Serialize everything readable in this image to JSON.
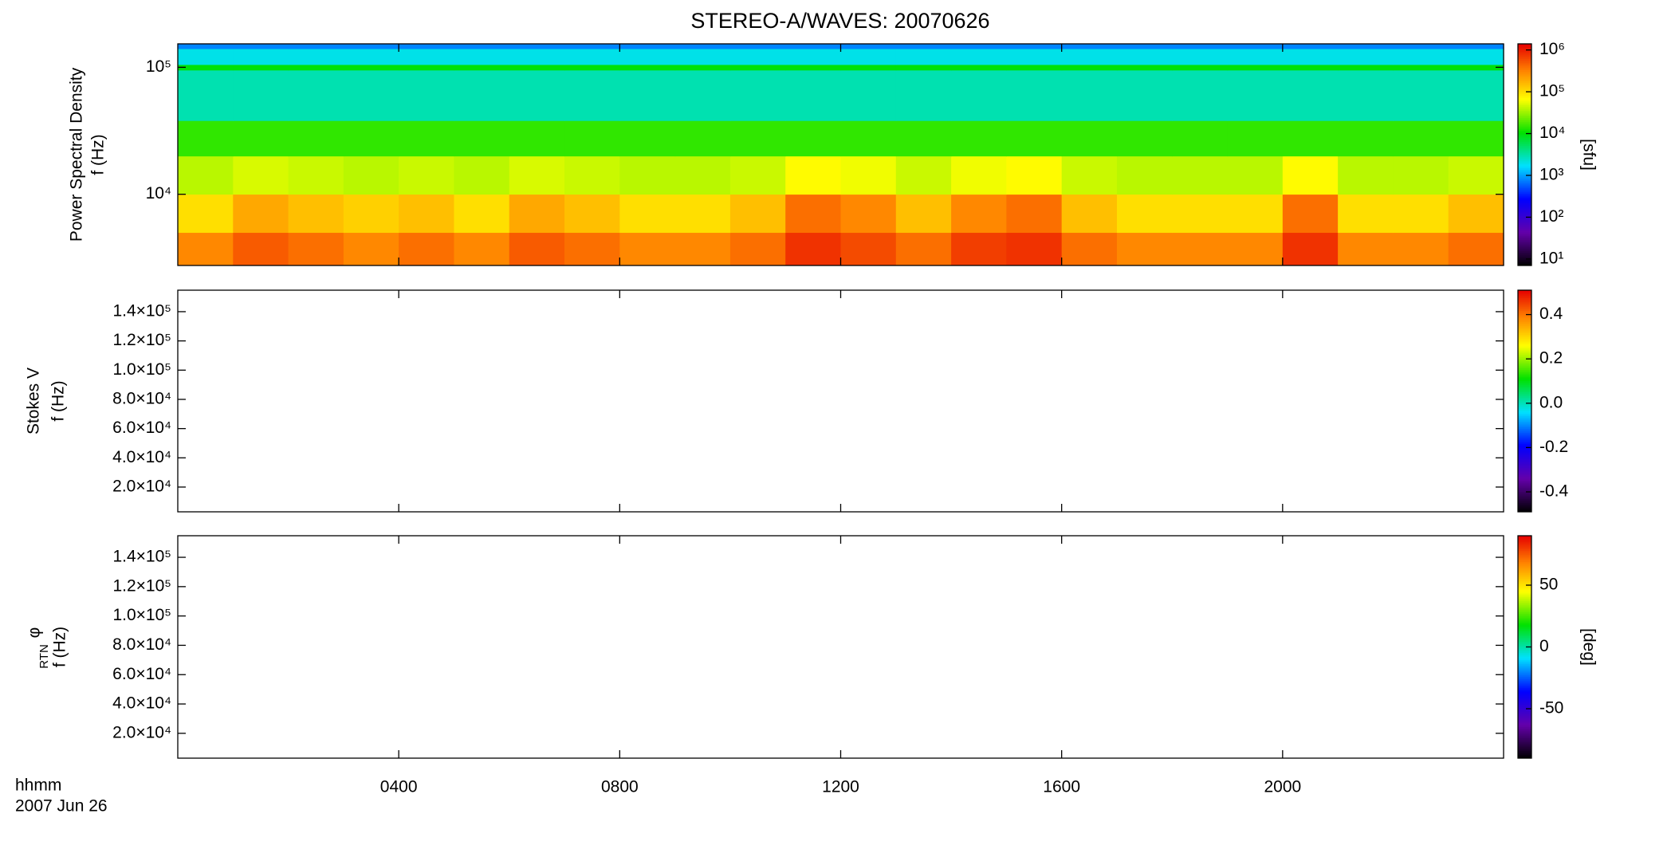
{
  "title": "STEREO-A/WAVES: 20070626",
  "x_label": [
    "hhmm",
    "2007 Jun 26"
  ],
  "chart_data": [
    {
      "type": "heatmap",
      "y_label": [
        "Power Spectral Density",
        "f (Hz)"
      ],
      "ylog": true,
      "ylim": [
        2750,
        153000
      ],
      "yticks": [
        {
          "value": 10000,
          "label": "10⁴"
        },
        {
          "value": 100000,
          "label": "10⁵"
        }
      ],
      "x_edges": [
        0,
        1,
        2,
        3,
        4,
        5,
        6,
        7,
        8,
        9,
        10,
        11,
        12,
        13,
        14,
        15,
        16,
        17,
        18,
        19,
        20,
        21,
        22,
        23,
        24
      ],
      "y_edges": [
        2750,
        5000,
        10000,
        20000,
        38000,
        95000,
        105000,
        140000,
        153000
      ],
      "z": [
        [
          300000,
          500000,
          400000,
          300000,
          400000,
          300000,
          500000,
          400000,
          300000,
          300000,
          400000,
          800000,
          600000,
          400000,
          700000,
          800000,
          400000,
          300000,
          300000,
          300000,
          800000,
          300000,
          300000,
          400000
        ],
        [
          100000,
          200000,
          150000,
          120000,
          150000,
          100000,
          200000,
          150000,
          100000,
          100000,
          150000,
          400000,
          300000,
          150000,
          300000,
          400000,
          150000,
          100000,
          100000,
          100000,
          400000,
          100000,
          100000,
          150000
        ],
        [
          40000,
          50000,
          45000,
          40000,
          45000,
          40000,
          50000,
          45000,
          40000,
          40000,
          45000,
          70000,
          60000,
          45000,
          60000,
          70000,
          45000,
          40000,
          40000,
          40000,
          70000,
          40000,
          40000,
          45000
        ],
        [
          15000,
          15000,
          15000,
          15000,
          15000,
          15000,
          15000,
          15000,
          15000,
          15000,
          15000,
          15000,
          15000,
          15000,
          15000,
          15000,
          15000,
          15000,
          15000,
          15000,
          15000,
          15000,
          15000,
          15000
        ],
        [
          3000,
          3000,
          3000,
          3000,
          3000,
          3000,
          3000,
          3000,
          3000,
          3000,
          3000,
          3000,
          3000,
          3000,
          3000,
          3000,
          3000,
          3000,
          3000,
          3000,
          3000,
          3000,
          3000,
          3000
        ],
        [
          10000,
          10000,
          10000,
          10000,
          10000,
          10000,
          10000,
          10000,
          10000,
          10000,
          10000,
          10000,
          10000,
          10000,
          10000,
          10000,
          10000,
          10000,
          10000,
          10000,
          10000,
          10000,
          10000,
          10000
        ],
        [
          2000,
          2000,
          2000,
          2000,
          2000,
          2000,
          2000,
          2000,
          2000,
          2000,
          2000,
          2000,
          2000,
          2000,
          2000,
          2000,
          2000,
          2000,
          2000,
          2000,
          2000,
          2000,
          2000,
          2000
        ],
        [
          800,
          800,
          800,
          800,
          800,
          800,
          800,
          800,
          800,
          800,
          800,
          800,
          800,
          800,
          800,
          800,
          800,
          800,
          800,
          800,
          800,
          800,
          800,
          800
        ]
      ],
      "colorbar": {
        "zlog": true,
        "zlim": [
          7,
          1400000
        ],
        "label": "[sfu]",
        "zticks": [
          {
            "value": 10,
            "label": "10¹"
          },
          {
            "value": 100,
            "label": "10²"
          },
          {
            "value": 1000,
            "label": "10³"
          },
          {
            "value": 10000,
            "label": "10⁴"
          },
          {
            "value": 100000,
            "label": "10⁵"
          },
          {
            "value": 1000000,
            "label": "10⁶"
          }
        ]
      }
    },
    {
      "type": "heatmap",
      "y_label": [
        "Stokes V",
        "f (Hz)"
      ],
      "ylog": false,
      "ylim": [
        3060,
        154700
      ],
      "yticks": [
        {
          "value": 20000,
          "label": "2.0×10⁴"
        },
        {
          "value": 40000,
          "label": "4.0×10⁴"
        },
        {
          "value": 60000,
          "label": "6.0×10⁴"
        },
        {
          "value": 80000,
          "label": "8.0×10⁴"
        },
        {
          "value": 100000,
          "label": "1.0×10⁵"
        },
        {
          "value": 120000,
          "label": "1.2×10⁵"
        },
        {
          "value": 140000,
          "label": "1.4×10⁵"
        }
      ],
      "colorbar": {
        "zlog": false,
        "zlim": [
          -0.49,
          0.51
        ],
        "zticks": [
          -0.4,
          -0.2,
          {
            "value": 0,
            "label": "0.0"
          },
          0.2,
          0.4
        ]
      }
    },
    {
      "type": "heatmap",
      "y_label_symbol": "φ",
      "y_label_subscript": "RTN",
      "y_label": [
        "f (Hz)"
      ],
      "ylog": false,
      "ylim": [
        3060,
        154700
      ],
      "yticks": [
        {
          "value": 20000,
          "label": "2.0×10⁴"
        },
        {
          "value": 40000,
          "label": "4.0×10⁴"
        },
        {
          "value": 60000,
          "label": "6.0×10⁴"
        },
        {
          "value": 80000,
          "label": "8.0×10⁴"
        },
        {
          "value": 100000,
          "label": "1.0×10⁵"
        },
        {
          "value": 120000,
          "label": "1.2×10⁵"
        },
        {
          "value": 140000,
          "label": "1.4×10⁵"
        }
      ],
      "xlim": [
        0,
        24
      ],
      "xticks": [
        {
          "value": 4,
          "label": "0400"
        },
        {
          "value": 8,
          "label": "0800"
        },
        {
          "value": 12,
          "label": "1200"
        },
        {
          "value": 16,
          "label": "1600"
        },
        {
          "value": 20,
          "label": "2000"
        }
      ],
      "colorbar": {
        "zlog": false,
        "zlim": [
          -90,
          90
        ],
        "label": "[deg]",
        "zticks": [
          -50,
          0,
          50
        ]
      }
    }
  ]
}
